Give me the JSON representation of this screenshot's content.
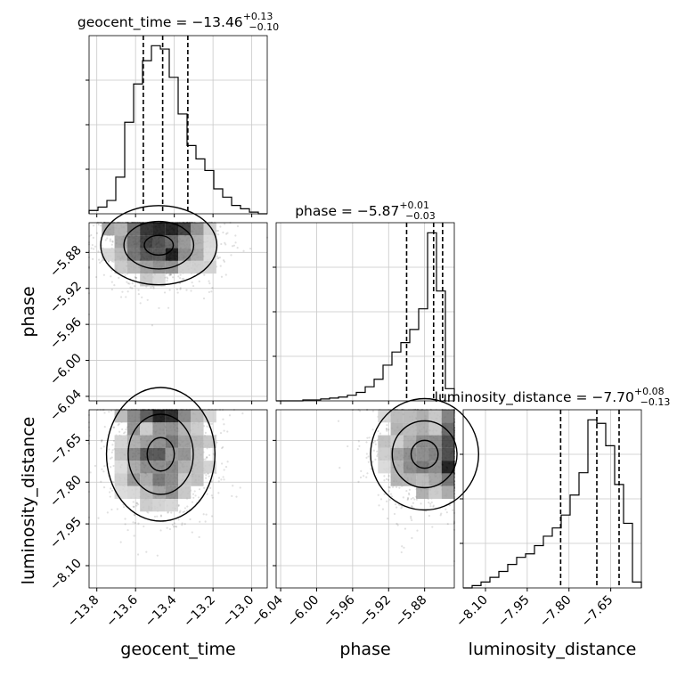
{
  "chart_data": {
    "type": "corner",
    "parameters": [
      "geocent_time",
      "phase",
      "luminosity_distance"
    ],
    "titles": [
      {
        "param": "geocent_time",
        "prefix": "geocent_time = ",
        "median": "−13.46",
        "plus": "+0.13",
        "minus": "−0.10"
      },
      {
        "param": "phase",
        "prefix": "phase = ",
        "median": "−5.87",
        "plus": "+0.01",
        "minus": "−0.03"
      },
      {
        "param": "luminosity_distance",
        "prefix": "luminosity_distance = ",
        "median": "−7.70",
        "plus": "+0.08",
        "minus": "−0.13"
      }
    ],
    "ranges": {
      "geocent_time": [
        -13.84,
        -12.92
      ],
      "phase": [
        -6.045,
        -5.847
      ],
      "luminosity_distance": [
        -8.18,
        -7.54
      ]
    },
    "ticks": {
      "geocent_time": {
        "values": [
          -13.8,
          -13.6,
          -13.4,
          -13.2,
          -13.0
        ],
        "labels": [
          "−13.8",
          "−13.6",
          "−13.4",
          "−13.2",
          "−13.0"
        ]
      },
      "phase": {
        "values": [
          -6.04,
          -6.0,
          -5.96,
          -5.92,
          -5.88
        ],
        "labels": [
          "−6.04",
          "−6.00",
          "−5.96",
          "−5.92",
          "−5.88"
        ]
      },
      "luminosity_distance": {
        "values": [
          -8.1,
          -7.95,
          -7.8,
          -7.65
        ],
        "labels": [
          "−8.10",
          "−7.95",
          "−7.80",
          "−7.65"
        ]
      }
    },
    "quantiles": {
      "geocent_time": [
        -13.56,
        -13.46,
        -13.33
      ],
      "phase": [
        -5.9,
        -5.87,
        -5.86
      ],
      "luminosity_distance": [
        -7.83,
        -7.7,
        -7.62
      ]
    },
    "histograms": {
      "geocent_time": {
        "edges": [
          -13.84,
          -13.794,
          -13.748,
          -13.702,
          -13.656,
          -13.61,
          -13.564,
          -13.518,
          -13.472,
          -13.426,
          -13.38,
          -13.334,
          -13.288,
          -13.242,
          -13.196,
          -13.15,
          -13.104,
          -13.058,
          -13.012,
          -12.966,
          -12.92
        ],
        "counts": [
          2,
          4,
          8,
          22,
          55,
          78,
          92,
          101,
          99,
          82,
          60,
          41,
          33,
          26,
          15,
          10,
          5,
          3,
          1,
          0
        ]
      },
      "phase": {
        "edges": [
          -6.045,
          -6.0351,
          -6.0252,
          -6.0153,
          -6.0054,
          -5.9955,
          -5.9856,
          -5.9757,
          -5.9658,
          -5.9559,
          -5.946,
          -5.9361,
          -5.9262,
          -5.9163,
          -5.9064,
          -5.8965,
          -5.8866,
          -5.8767,
          -5.8668,
          -5.8569,
          -5.847
        ],
        "counts": [
          0,
          0,
          0,
          1,
          1,
          2,
          3,
          4,
          6,
          9,
          15,
          23,
          38,
          52,
          62,
          76,
          98,
          179,
          117,
          13
        ]
      },
      "luminosity_distance": {
        "edges": [
          -8.18,
          -8.148,
          -8.116,
          -8.084,
          -8.052,
          -8.02,
          -7.988,
          -7.956,
          -7.924,
          -7.892,
          -7.86,
          -7.828,
          -7.796,
          -7.764,
          -7.732,
          -7.7,
          -7.668,
          -7.636,
          -7.604,
          -7.572,
          -7.54
        ],
        "counts": [
          0,
          2,
          5,
          9,
          14,
          20,
          26,
          29,
          36,
          44,
          51,
          62,
          79,
          98,
          143,
          140,
          121,
          88,
          55,
          5
        ]
      }
    },
    "density2d": [
      {
        "x": "geocent_time",
        "y": "phase",
        "center": [
          -13.48,
          -5.872
        ],
        "spread": [
          0.15,
          0.022
        ],
        "samples": 1400
      },
      {
        "x": "geocent_time",
        "y": "luminosity_distance",
        "center": [
          -13.47,
          -7.7
        ],
        "spread": [
          0.14,
          0.12
        ],
        "samples": 1400
      },
      {
        "x": "phase",
        "y": "luminosity_distance",
        "center": [
          -5.88,
          -7.7
        ],
        "spread": [
          0.03,
          0.1
        ],
        "samples": 1000
      }
    ],
    "grid": true
  }
}
